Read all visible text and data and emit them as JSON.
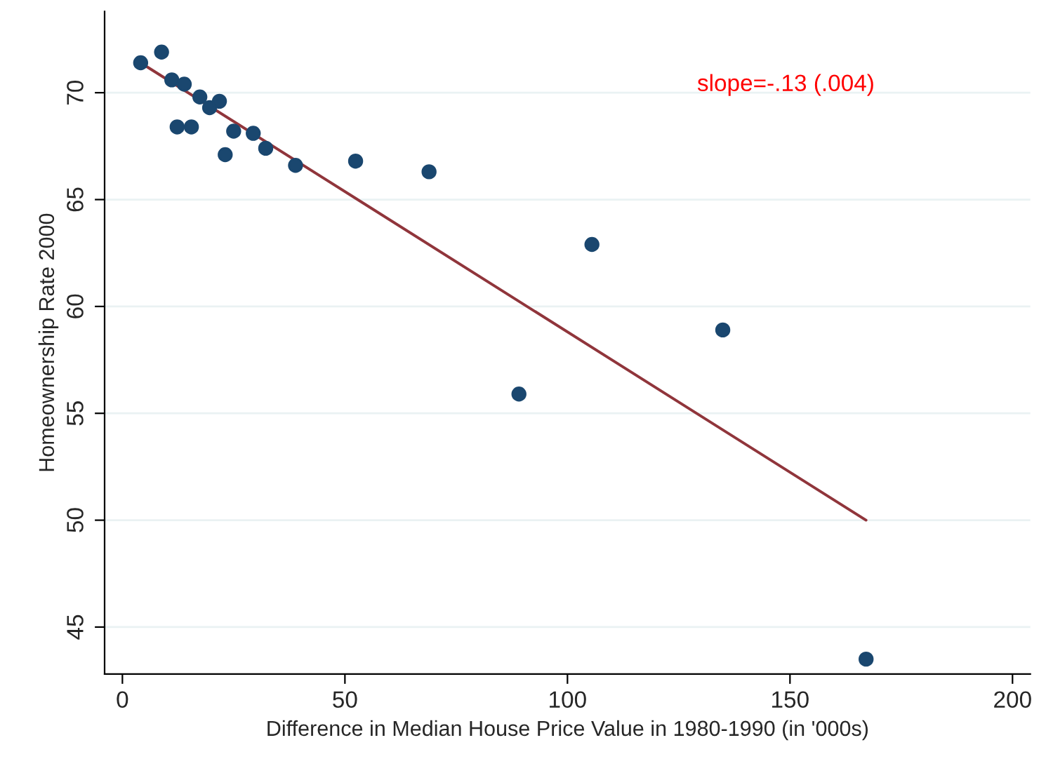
{
  "chart_data": {
    "type": "scatter",
    "xlabel": "Difference in Median House Price Value in 1980-1990 (in '000s)",
    "ylabel": "Homeownership Rate 2000",
    "annotations": [
      "slope=-.13 (.004)"
    ],
    "series": [
      {
        "marker": "circle",
        "color": "#1a476f",
        "x": [
          4.1,
          8.8,
          11.1,
          13.9,
          12.3,
          15.5,
          17.4,
          19.6,
          21.8,
          23.1,
          25.0,
          29.4,
          32.2,
          38.9,
          52.4,
          68.9,
          89.1,
          105.5,
          134.9,
          167.1
        ],
        "values": [
          71.4,
          71.9,
          70.6,
          70.4,
          68.4,
          68.4,
          69.8,
          69.3,
          69.6,
          67.1,
          68.2,
          68.1,
          67.4,
          66.6,
          66.8,
          66.3,
          55.9,
          62.9,
          58.9,
          43.5
        ]
      },
      {
        "type": "line",
        "marker": "none",
        "color": "#90353b",
        "x": [
          4.1,
          167.1
        ],
        "values": [
          71.4,
          50.0
        ]
      }
    ],
    "xlim": [
      -4,
      204
    ],
    "ylim": [
      42.8,
      73.8
    ],
    "xticks": [
      0,
      50,
      100,
      150,
      200
    ],
    "yticks": [
      45,
      50,
      55,
      60,
      65,
      70
    ],
    "grid": "y"
  }
}
